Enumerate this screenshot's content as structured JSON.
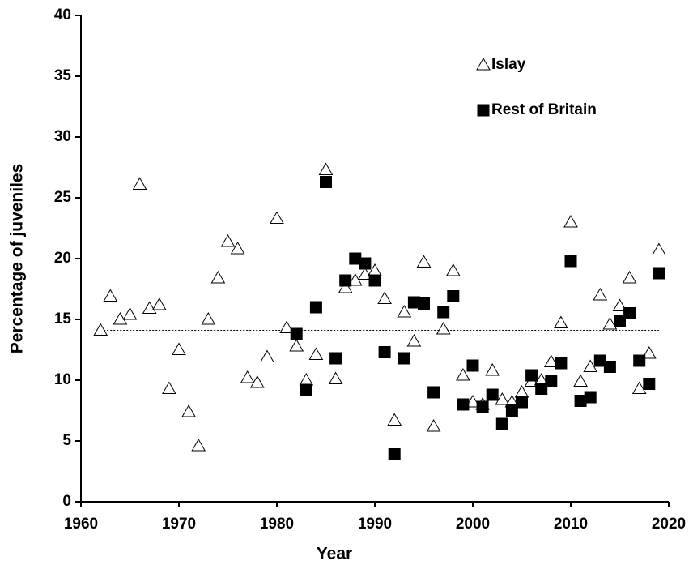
{
  "chart_data": {
    "type": "scatter",
    "x_label": "Year",
    "y_label": "Percentage of juveniles",
    "xlim": [
      1960,
      2020
    ],
    "xticks": [
      1960,
      1970,
      1980,
      1990,
      2000,
      2010,
      2020
    ],
    "ylim": [
      0,
      40
    ],
    "yticks": [
      0,
      5,
      10,
      15,
      20,
      25,
      30,
      35,
      40
    ],
    "mean_line": 14.1,
    "legend": "upper right",
    "series": [
      {
        "name": "Islay",
        "marker": "triangle",
        "color": "#ffffff",
        "x": [
          1962,
          1963,
          1964,
          1965,
          1966,
          1967,
          1968,
          1969,
          1970,
          1971,
          1972,
          1973,
          1974,
          1975,
          1976,
          1977,
          1978,
          1979,
          1980,
          1981,
          1982,
          1983,
          1984,
          1985,
          1986,
          1987,
          1988,
          1989,
          1990,
          1991,
          1992,
          1993,
          1994,
          1995,
          1996,
          1997,
          1998,
          1999,
          2000,
          2001,
          2002,
          2003,
          2004,
          2005,
          2006,
          2007,
          2008,
          2009,
          2010,
          2011,
          2012,
          2013,
          2014,
          2015,
          2016,
          2017,
          2018,
          2019
        ],
        "values": [
          14.1,
          16.9,
          15.0,
          15.4,
          26.1,
          15.9,
          16.2,
          9.3,
          12.5,
          7.4,
          4.6,
          15.0,
          18.4,
          21.4,
          20.8,
          10.2,
          9.8,
          11.9,
          23.3,
          14.3,
          12.8,
          10.0,
          12.1,
          27.3,
          10.1,
          17.6,
          18.2,
          18.7,
          19.0,
          16.7,
          6.7,
          15.6,
          13.2,
          19.7,
          6.2,
          14.2,
          19.0,
          10.4,
          8.2,
          8.0,
          10.8,
          8.4,
          8.2,
          9.0,
          9.9,
          10.0,
          11.5,
          14.7,
          23.0,
          9.9,
          11.1,
          17.0,
          14.6,
          16.1,
          18.4,
          9.3,
          12.2,
          20.7
        ]
      },
      {
        "name": "Rest of Britain",
        "marker": "square",
        "color": "#000000",
        "x": [
          1982,
          1983,
          1984,
          1985,
          1986,
          1987,
          1988,
          1989,
          1990,
          1991,
          1992,
          1993,
          1994,
          1995,
          1996,
          1997,
          1998,
          1999,
          2000,
          2001,
          2002,
          2003,
          2004,
          2005,
          2006,
          2007,
          2008,
          2009,
          2010,
          2011,
          2012,
          2013,
          2014,
          2015,
          2016,
          2017,
          2018,
          2019
        ],
        "values": [
          13.8,
          9.2,
          16.0,
          26.3,
          11.8,
          18.2,
          20.0,
          19.6,
          18.2,
          12.3,
          3.9,
          11.8,
          16.4,
          16.3,
          9.0,
          15.6,
          16.9,
          8.0,
          11.2,
          7.8,
          8.8,
          6.4,
          7.5,
          8.2,
          10.4,
          9.3,
          9.9,
          11.4,
          19.8,
          8.3,
          8.6,
          11.6,
          11.1,
          14.9,
          15.5,
          11.6,
          9.7,
          18.8
        ]
      }
    ]
  }
}
